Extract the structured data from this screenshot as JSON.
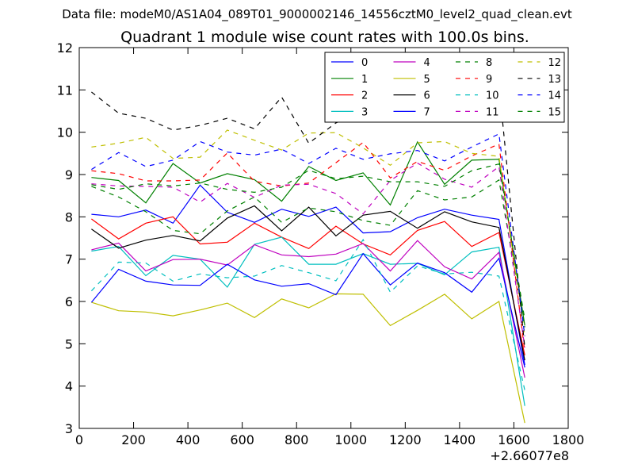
{
  "header": {
    "data_file": "Data file: modeM0/AS1A04_089T01_9000002146_14556cztM0_level2_quad_clean.evt"
  },
  "chart_data": {
    "type": "line",
    "title": "Quadrant 1 module wise count rates with 100.0s bins.",
    "xlabel": "",
    "ylabel": "",
    "x_offset_label": "+2.66077e8",
    "xlim": [
      0,
      1800
    ],
    "ylim": [
      3,
      12
    ],
    "x_ticks": [
      0,
      200,
      400,
      600,
      800,
      1000,
      1200,
      1400,
      1600,
      1800
    ],
    "y_ticks": [
      3,
      4,
      5,
      6,
      7,
      8,
      9,
      10,
      11,
      12
    ],
    "x_tick_labels": [
      "0",
      "200",
      "400",
      "600",
      "800",
      "1000",
      "1200",
      "1400",
      "1600",
      "1800"
    ],
    "y_tick_labels": [
      "3",
      "4",
      "5",
      "6",
      "7",
      "8",
      "9",
      "10",
      "11",
      "12"
    ],
    "grid": false,
    "legend": {
      "position": "top-right",
      "columns": 4
    },
    "x": [
      45,
      145,
      245,
      345,
      445,
      545,
      645,
      745,
      845,
      945,
      1045,
      1145,
      1245,
      1345,
      1445,
      1545,
      1640
    ],
    "series": [
      {
        "name": "0",
        "color": "#0000ff",
        "style": "solid",
        "values": [
          8.06,
          8.0,
          8.16,
          7.85,
          8.75,
          8.11,
          7.87,
          8.18,
          8.01,
          8.23,
          7.62,
          7.65,
          7.98,
          8.18,
          8.04,
          7.94,
          4.5
        ]
      },
      {
        "name": "1",
        "color": "#008000",
        "style": "solid",
        "values": [
          8.93,
          8.86,
          8.33,
          9.26,
          8.8,
          9.02,
          8.88,
          8.37,
          9.19,
          8.86,
          9.04,
          8.28,
          9.77,
          8.77,
          9.34,
          9.36,
          5.43
        ]
      },
      {
        "name": "2",
        "color": "#ff0000",
        "style": "solid",
        "values": [
          7.95,
          7.48,
          7.85,
          8.0,
          7.36,
          7.4,
          7.85,
          7.52,
          7.25,
          7.78,
          7.36,
          7.1,
          7.68,
          7.89,
          7.3,
          7.63,
          4.73
        ]
      },
      {
        "name": "3",
        "color": "#00bfbf",
        "style": "solid",
        "values": [
          7.19,
          7.3,
          6.61,
          7.09,
          7.0,
          6.34,
          7.35,
          7.52,
          6.88,
          6.88,
          7.13,
          6.88,
          6.9,
          6.63,
          7.17,
          7.28,
          3.53
        ]
      },
      {
        "name": "4",
        "color": "#bf00bf",
        "style": "solid",
        "values": [
          7.22,
          7.38,
          6.72,
          6.99,
          7.0,
          6.86,
          7.34,
          7.1,
          7.06,
          7.12,
          7.37,
          6.72,
          7.44,
          6.82,
          6.53,
          7.16,
          4.2
        ]
      },
      {
        "name": "5",
        "color": "#bfbf00",
        "style": "solid",
        "values": [
          5.98,
          5.78,
          5.75,
          5.66,
          5.8,
          5.96,
          5.62,
          6.06,
          5.85,
          6.18,
          6.17,
          5.43,
          5.79,
          6.17,
          5.59,
          6.0,
          3.13
        ]
      },
      {
        "name": "6",
        "color": "#000000",
        "style": "solid",
        "values": [
          7.71,
          7.26,
          7.45,
          7.56,
          7.43,
          7.97,
          8.26,
          7.67,
          8.23,
          7.55,
          8.04,
          8.13,
          7.73,
          8.12,
          7.88,
          7.75,
          4.61
        ]
      },
      {
        "name": "7",
        "color": "#0000ff",
        "style": "solid",
        "values": [
          5.98,
          6.76,
          6.48,
          6.39,
          6.38,
          6.88,
          6.51,
          6.36,
          6.42,
          6.16,
          7.13,
          6.39,
          6.91,
          6.68,
          6.22,
          7.02,
          4.44
        ]
      },
      {
        "name": "8",
        "color": "#008000",
        "style": "dashed",
        "values": [
          8.72,
          8.47,
          8.12,
          7.68,
          7.6,
          8.14,
          8.47,
          7.87,
          8.21,
          8.12,
          7.91,
          7.8,
          8.62,
          8.4,
          8.47,
          8.87,
          5.39
        ]
      },
      {
        "name": "9",
        "color": "#ff0000",
        "style": "dashed",
        "values": [
          9.09,
          9.02,
          8.85,
          8.85,
          8.87,
          9.51,
          8.84,
          8.73,
          8.8,
          9.28,
          9.76,
          8.92,
          9.31,
          9.1,
          9.44,
          9.72,
          4.81
        ]
      },
      {
        "name": "10",
        "color": "#00bfbf",
        "style": "dashed",
        "values": [
          6.25,
          6.93,
          6.91,
          6.48,
          6.65,
          6.56,
          6.6,
          6.85,
          6.68,
          6.49,
          7.46,
          6.22,
          6.84,
          6.65,
          6.69,
          6.6,
          3.9
        ]
      },
      {
        "name": "11",
        "color": "#bf00bf",
        "style": "dashed",
        "values": [
          8.78,
          8.73,
          8.72,
          8.7,
          8.35,
          8.79,
          8.46,
          8.75,
          8.77,
          8.55,
          8.07,
          8.86,
          9.27,
          8.89,
          8.7,
          9.19,
          4.91
        ]
      },
      {
        "name": "12",
        "color": "#bfbf00",
        "style": "dashed",
        "values": [
          9.65,
          9.74,
          9.88,
          9.38,
          9.41,
          10.05,
          9.81,
          9.58,
          9.98,
          9.99,
          9.63,
          9.22,
          9.75,
          9.78,
          9.5,
          9.43,
          5.2
        ]
      },
      {
        "name": "13",
        "color": "#000000",
        "style": "dashed",
        "values": [
          10.95,
          10.45,
          10.33,
          10.05,
          10.16,
          10.33,
          10.08,
          10.83,
          9.74,
          10.22,
          10.51,
          10.44,
          10.61,
          11.02,
          10.52,
          11.13,
          4.9
        ]
      },
      {
        "name": "14",
        "color": "#0000ff",
        "style": "dashed",
        "values": [
          9.12,
          9.52,
          9.19,
          9.34,
          9.78,
          9.53,
          9.46,
          9.6,
          9.26,
          9.62,
          9.36,
          9.49,
          9.57,
          9.32,
          9.65,
          9.96,
          5.18
        ]
      },
      {
        "name": "15",
        "color": "#008000",
        "style": "dashed",
        "values": [
          8.76,
          8.65,
          8.78,
          8.73,
          8.8,
          8.65,
          8.58,
          8.7,
          9.1,
          8.9,
          8.96,
          8.83,
          8.83,
          8.72,
          9.09,
          9.25,
          5.57
        ]
      }
    ]
  }
}
